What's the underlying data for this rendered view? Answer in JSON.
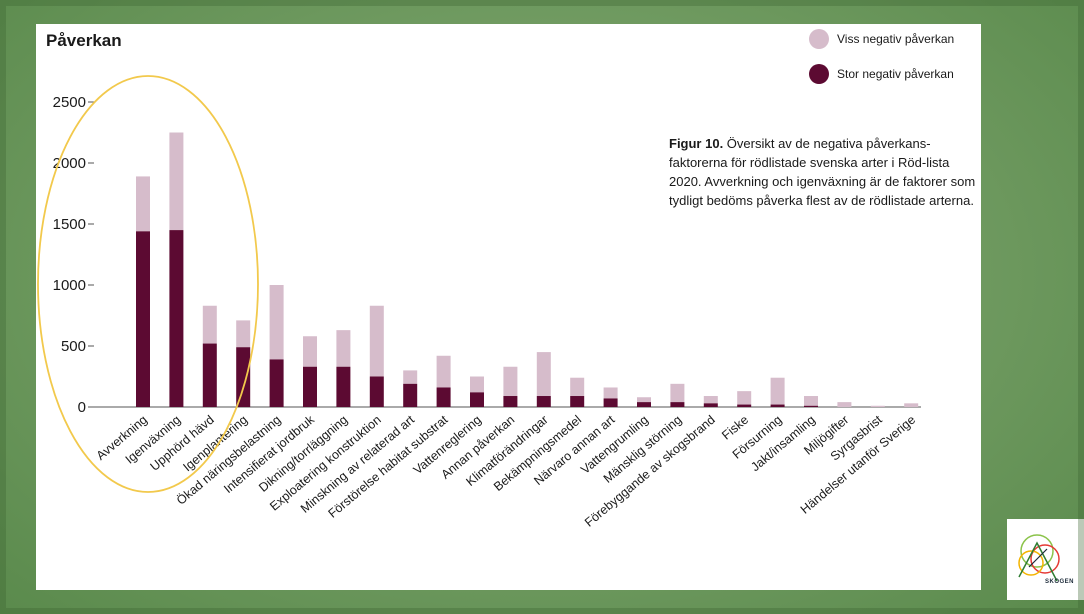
{
  "chart_data": {
    "type": "bar",
    "stacked": true,
    "title": "Påverkan",
    "xlabel": "",
    "ylabel": "",
    "ylim": [
      0,
      2500
    ],
    "yticks": [
      0,
      500,
      1000,
      1500,
      2000,
      2500
    ],
    "grid": false,
    "legend_position": "top-right",
    "categories": [
      "Avverkning",
      "Igenväxning",
      "Upphörd hävd",
      "Igenplantering",
      "Ökad näringsbelastning",
      "Intensifierat jordbruk",
      "Dikning/torrläggning",
      "Exploatering konstruktion",
      "Minskning av relaterad art",
      "Förstörelse habitat substrat",
      "Vattenreglering",
      "Annan påverkan",
      "Klimatförändringar",
      "Bekämpningsmedel",
      "Närvaro annan art",
      "Vattengrumling",
      "Mänsklig störning",
      "Förebyggande av skogsbrand",
      "Fiske",
      "Försurning",
      "Jakt/insamling",
      "Miljögifter",
      "Syrgasbrist",
      "Händelser utanför Sverige"
    ],
    "series": [
      {
        "name": "Stor negativ påverkan",
        "color": "#5c0a32",
        "values": [
          1440,
          1450,
          520,
          490,
          390,
          330,
          330,
          250,
          190,
          160,
          120,
          90,
          90,
          90,
          70,
          40,
          40,
          30,
          20,
          20,
          10,
          0,
          0,
          0
        ]
      },
      {
        "name": "Viss negativ påverkan",
        "color": "#d6bccb",
        "values": [
          450,
          800,
          310,
          220,
          610,
          250,
          300,
          580,
          110,
          260,
          130,
          240,
          360,
          150,
          90,
          40,
          150,
          60,
          110,
          220,
          80,
          40,
          10,
          30
        ]
      }
    ],
    "legend_entries": [
      "Viss negativ påverkan",
      "Stor negativ påverkan"
    ]
  },
  "caption": {
    "bold": "Figur 10.",
    "text": " Översikt av de negativa påverkans-faktorerna för rödlistade svenska arter i Röd-lista 2020. Avverkning och igenväxning är de faktorer som tydligt bedöms påverka flest av de rödlistade arterna."
  },
  "logo": {
    "text": "SKOGEN",
    "icon": "skogen-logo-icon"
  },
  "colors": {
    "annotation_ellipse": "#f2c94c",
    "axis": "#555555"
  }
}
